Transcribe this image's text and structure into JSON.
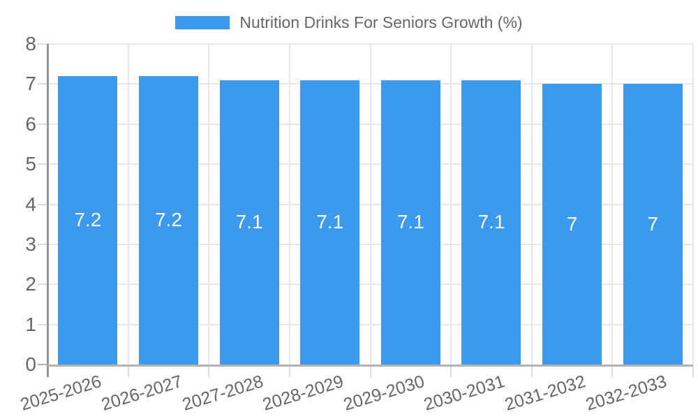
{
  "legend": {
    "label": "Nutrition Drinks For Seniors Growth (%)"
  },
  "colors": {
    "bar": "#3b99ee",
    "grid": "#e7e7e7",
    "axis_border": "#949494",
    "tick_text": "#666666",
    "bar_label_text": "#ffffff"
  },
  "chart_data": {
    "type": "bar",
    "title": "Nutrition Drinks For Seniors Growth (%)",
    "categories": [
      "2025-2026",
      "2026-2027",
      "2027-2028",
      "2028-2029",
      "2029-2030",
      "2030-2031",
      "2031-2032",
      "2032-2033"
    ],
    "values": [
      7.2,
      7.2,
      7.1,
      7.1,
      7.1,
      7.1,
      7,
      7
    ],
    "value_labels": [
      "7.2",
      "7.2",
      "7.1",
      "7.1",
      "7.1",
      "7.1",
      "7",
      "7"
    ],
    "xlabel": "",
    "ylabel": "",
    "ylim": [
      0,
      8
    ],
    "yticks": [
      0,
      1,
      2,
      3,
      4,
      5,
      6,
      7,
      8
    ],
    "grid": true,
    "legend_position": "top",
    "bar_label_position": "center"
  }
}
